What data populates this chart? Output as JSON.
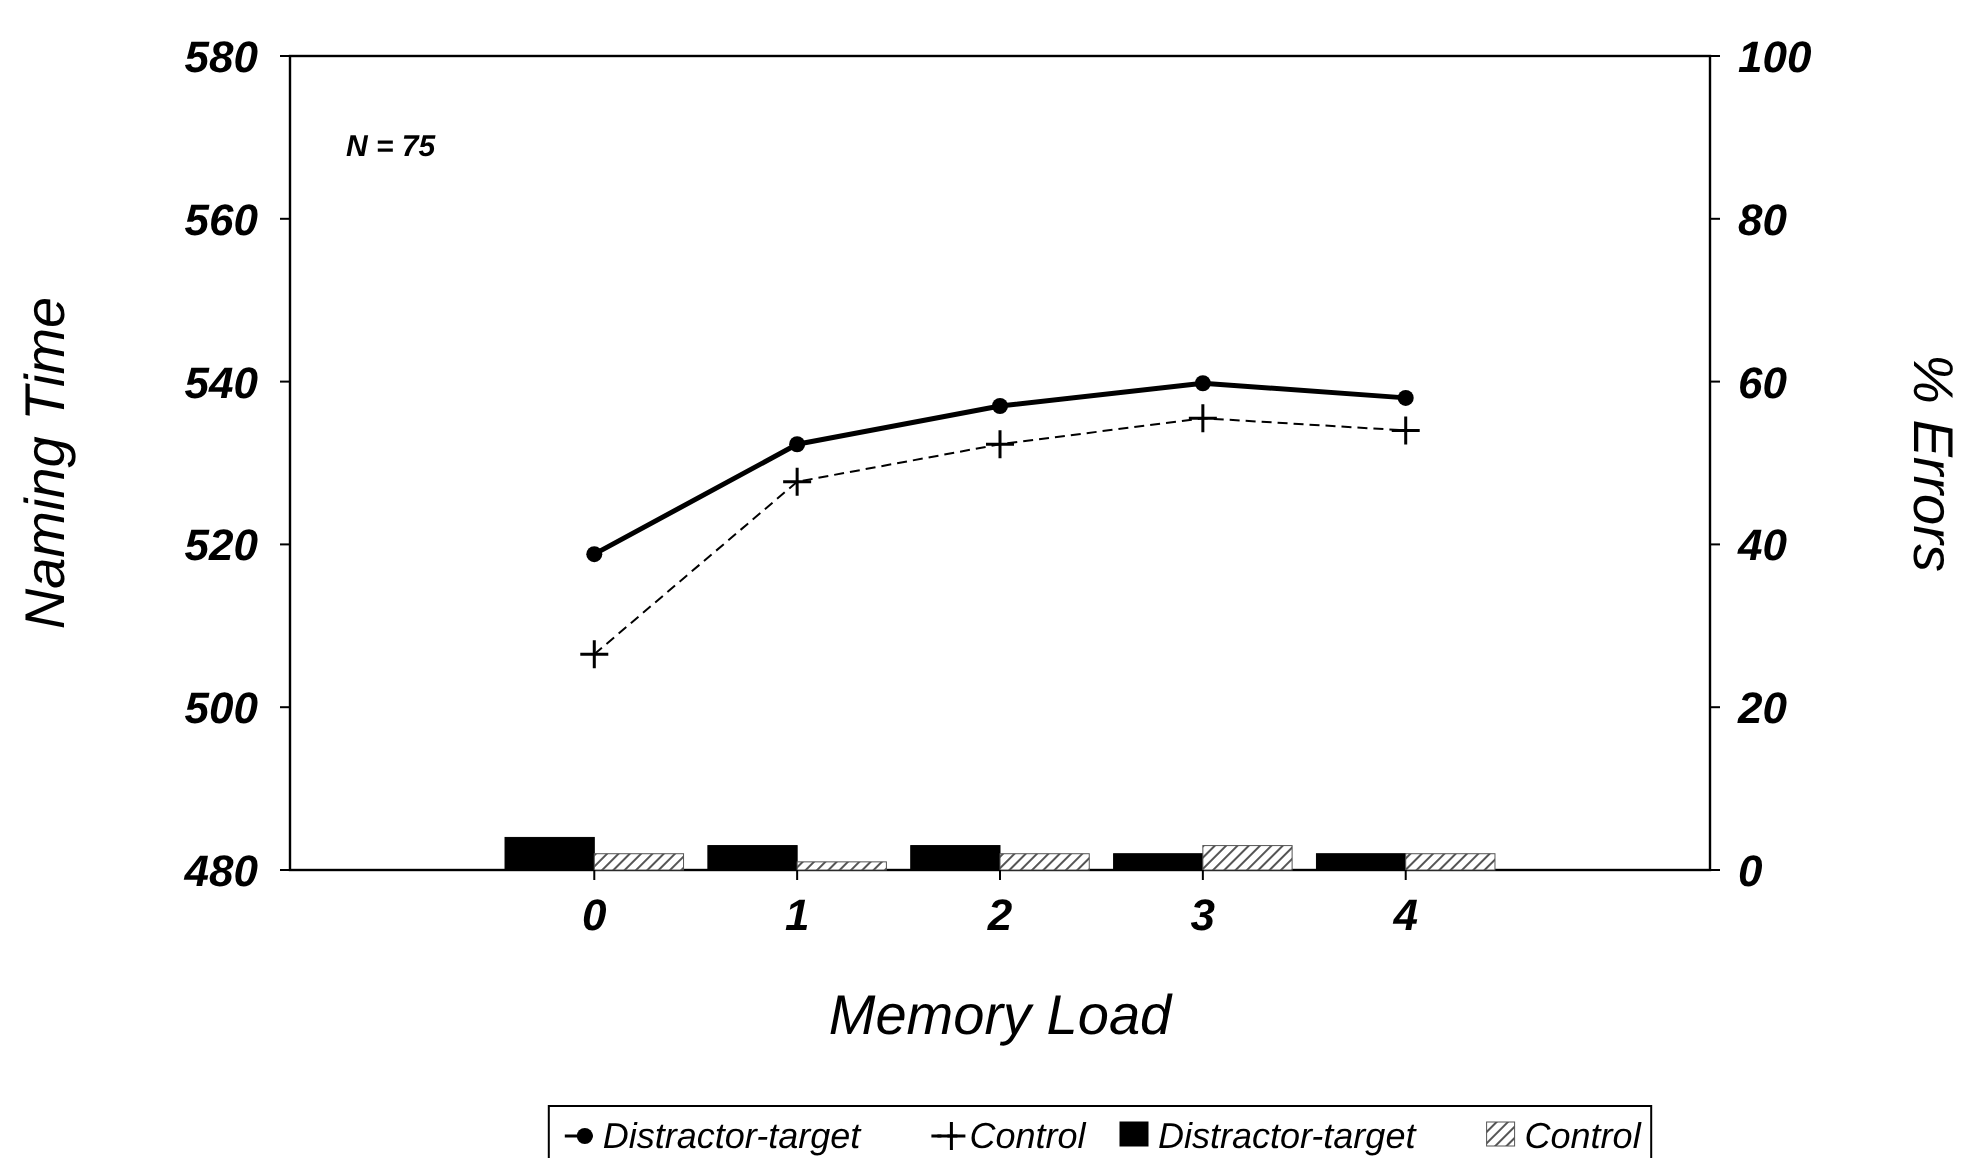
{
  "chart_data": {
    "type": "line",
    "xlabel": "Memory Load",
    "ylabel": "Naming Time",
    "y2label": "% Errors",
    "x": [
      0,
      1,
      2,
      3,
      4
    ],
    "xlim": [
      -1.5,
      5.5
    ],
    "xticks": [
      0,
      1,
      2,
      3,
      4
    ],
    "ylim": [
      480,
      580
    ],
    "yticks": [
      480,
      500,
      520,
      540,
      560,
      580
    ],
    "y2lim": [
      0,
      100
    ],
    "y2ticks": [
      0,
      20,
      40,
      60,
      80,
      100
    ],
    "annotations": [
      "N = 75"
    ],
    "legend": "bottom",
    "grid": false,
    "series": [
      {
        "name": "Distractor-target",
        "color": "#000000",
        "marker": "circle",
        "line_style": "solid",
        "values": [
          518.8,
          532.3,
          537,
          539.8,
          538
        ]
      },
      {
        "name": "Control",
        "color": "#000000",
        "marker": "cross",
        "line_style": "dashed",
        "values": [
          506.5,
          527.7,
          532.3,
          535.5,
          534
        ]
      },
      {
        "name": "Distractor-target",
        "type": "bar",
        "axis": "y2",
        "color": "#000000",
        "values": [
          4,
          3,
          3,
          2,
          2
        ]
      },
      {
        "name": "Control",
        "type": "bar",
        "axis": "y2",
        "color": "#555555",
        "values": [
          2,
          1,
          2,
          3,
          2
        ]
      }
    ]
  }
}
